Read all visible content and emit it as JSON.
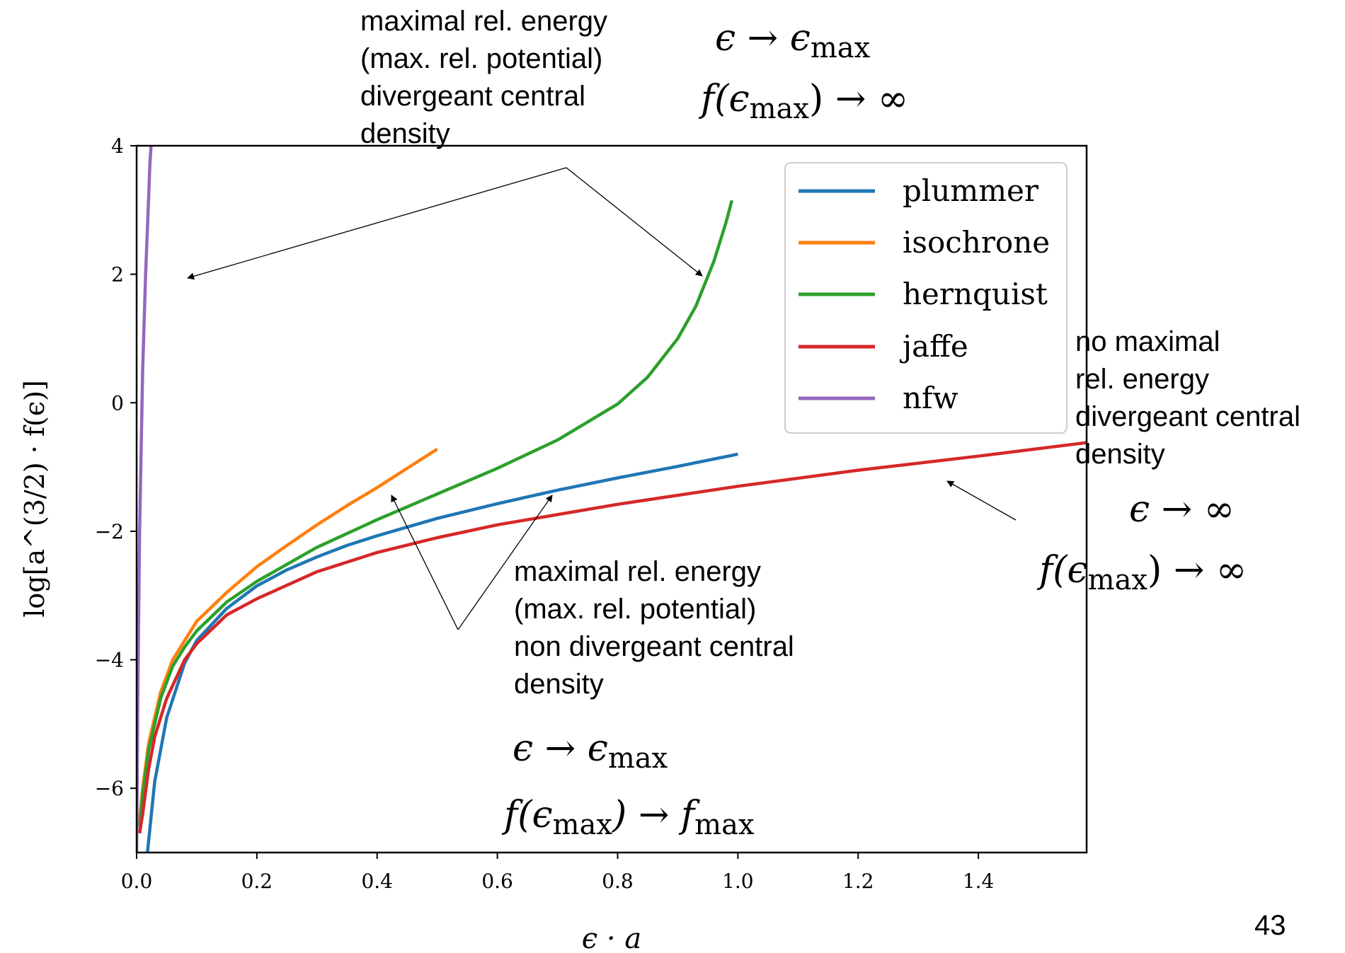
{
  "chart_data": {
    "type": "line",
    "xlabel": "ϵ · a",
    "ylabel": "log[a^(3/2) · f(ϵ)]",
    "xlim": [
      0,
      1.58
    ],
    "ylim": [
      -7,
      4
    ],
    "x_ticks": [
      "0.0",
      "0.2",
      "0.4",
      "0.6",
      "0.8",
      "1.0",
      "1.2",
      "1.4"
    ],
    "y_ticks": [
      "−6",
      "−4",
      "−2",
      "0",
      "2",
      "4"
    ],
    "legend_position": "top-right",
    "series": [
      {
        "name": "plummer",
        "color": "#1f77b4",
        "x": [
          0.018,
          0.03,
          0.05,
          0.08,
          0.1,
          0.15,
          0.2,
          0.25,
          0.3,
          0.35,
          0.4,
          0.5,
          0.6,
          0.7,
          0.8,
          0.9,
          1.0
        ],
        "y": [
          -7.0,
          -5.9,
          -4.9,
          -4.05,
          -3.7,
          -3.2,
          -2.85,
          -2.6,
          -2.4,
          -2.22,
          -2.07,
          -1.8,
          -1.57,
          -1.36,
          -1.17,
          -0.99,
          -0.8
        ]
      },
      {
        "name": "isochrone",
        "color": "#ff7f0e",
        "x": [
          0.005,
          0.01,
          0.02,
          0.04,
          0.06,
          0.08,
          0.1,
          0.15,
          0.2,
          0.25,
          0.3,
          0.35,
          0.4,
          0.45,
          0.5
        ],
        "y": [
          -6.5,
          -6.0,
          -5.3,
          -4.5,
          -4.0,
          -3.7,
          -3.4,
          -2.95,
          -2.55,
          -2.22,
          -1.9,
          -1.6,
          -1.32,
          -1.02,
          -0.72
        ]
      },
      {
        "name": "hernquist",
        "color": "#2ca02c",
        "x": [
          0.005,
          0.01,
          0.02,
          0.04,
          0.06,
          0.08,
          0.1,
          0.15,
          0.2,
          0.3,
          0.4,
          0.5,
          0.6,
          0.7,
          0.8,
          0.85,
          0.9,
          0.93,
          0.96,
          0.98,
          0.99
        ],
        "y": [
          -6.6,
          -6.1,
          -5.4,
          -4.6,
          -4.1,
          -3.8,
          -3.55,
          -3.1,
          -2.78,
          -2.25,
          -1.82,
          -1.42,
          -1.02,
          -0.58,
          -0.02,
          0.4,
          1.0,
          1.5,
          2.2,
          2.8,
          3.15
        ]
      },
      {
        "name": "jaffe",
        "color": "#d62728",
        "x": [
          0.005,
          0.01,
          0.02,
          0.03,
          0.05,
          0.08,
          0.1,
          0.15,
          0.2,
          0.3,
          0.4,
          0.5,
          0.6,
          0.8,
          1.0,
          1.2,
          1.4,
          1.58
        ],
        "y": [
          -6.7,
          -6.4,
          -5.7,
          -5.2,
          -4.6,
          -4.0,
          -3.75,
          -3.3,
          -3.05,
          -2.63,
          -2.33,
          -2.1,
          -1.9,
          -1.58,
          -1.3,
          -1.05,
          -0.83,
          -0.62
        ]
      },
      {
        "name": "nfw",
        "color": "#9467bd",
        "x": [
          0.0,
          0.002,
          0.005,
          0.01,
          0.015,
          0.02,
          0.022,
          0.024
        ],
        "y": [
          -7.0,
          -4.5,
          -2.0,
          0.5,
          2.0,
          3.2,
          3.7,
          4.0
        ]
      }
    ]
  },
  "annotations": {
    "top": {
      "text": "maximal rel. energy\n(max. rel. potential)\ndivergeant central\ndensity",
      "math_line1": {
        "a": "ϵ → ϵ",
        "sub": "max"
      },
      "math_line2": {
        "a": "f(ϵ",
        "sub": "max",
        "b": ") → ∞"
      }
    },
    "right": {
      "text": "no maximal\nrel. energy\ndivergeant central\ndensity",
      "math_line1": {
        "a": "ϵ → ∞"
      },
      "math_line2": {
        "a": "f(ϵ",
        "sub": "max",
        "b": ") → ∞"
      }
    },
    "middle": {
      "text": "maximal rel. energy\n(max. rel. potential)\nnon divergeant central\ndensity",
      "math_line1": {
        "a": "ϵ → ϵ",
        "sub": "max"
      },
      "math_line2": {
        "a": "f(ϵ",
        "sub": "max",
        "b": ") → f",
        "sub2": "max"
      }
    }
  },
  "slide_number": "43"
}
